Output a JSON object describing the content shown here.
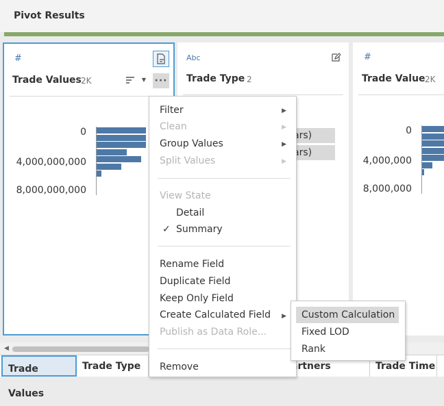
{
  "header": {
    "title": "Pivot Results"
  },
  "cards": [
    {
      "type_icon": "#",
      "name": "Trade Values",
      "count": "2K",
      "axis_labels": [
        "0",
        "4,000,000,000",
        "8,000,000,000"
      ],
      "bar_values": [
        0.95,
        0.95,
        0.95,
        0.58,
        0.85,
        0.48,
        0.09
      ]
    },
    {
      "type_icon": "Abc",
      "name": "Trade Type",
      "count": "2",
      "values": [
        "ars)",
        "ars)"
      ]
    },
    {
      "type_icon": "#",
      "name": "Trade Value",
      "count": "2K",
      "axis_labels": [
        "0",
        "4,000,000",
        "8,000,000"
      ],
      "bar_values": [
        0.95,
        0.95,
        0.95,
        0.95,
        0.95,
        0.45,
        0.1
      ]
    }
  ],
  "menu": {
    "filter": "Filter",
    "clean": "Clean",
    "group_values": "Group Values",
    "split_values": "Split Values",
    "view_state": "View State",
    "detail": "Detail",
    "summary": "Summary",
    "checkmark": "✓",
    "rename": "Rename Field",
    "duplicate": "Duplicate Field",
    "keep_only": "Keep Only Field",
    "create_calc": "Create Calculated Field",
    "publish": "Publish as Data Role...",
    "remove": "Remove"
  },
  "submenu": {
    "custom": "Custom Calculation",
    "fixed_lod": "Fixed LOD",
    "rank": "Rank"
  },
  "bottom_tabs": [
    "Trade Values",
    "Trade Type",
    "artners",
    "Trade Time"
  ],
  "colors": {
    "bar": "#4e79a7",
    "accent": "#4d9bd3",
    "green": "#86a869"
  }
}
